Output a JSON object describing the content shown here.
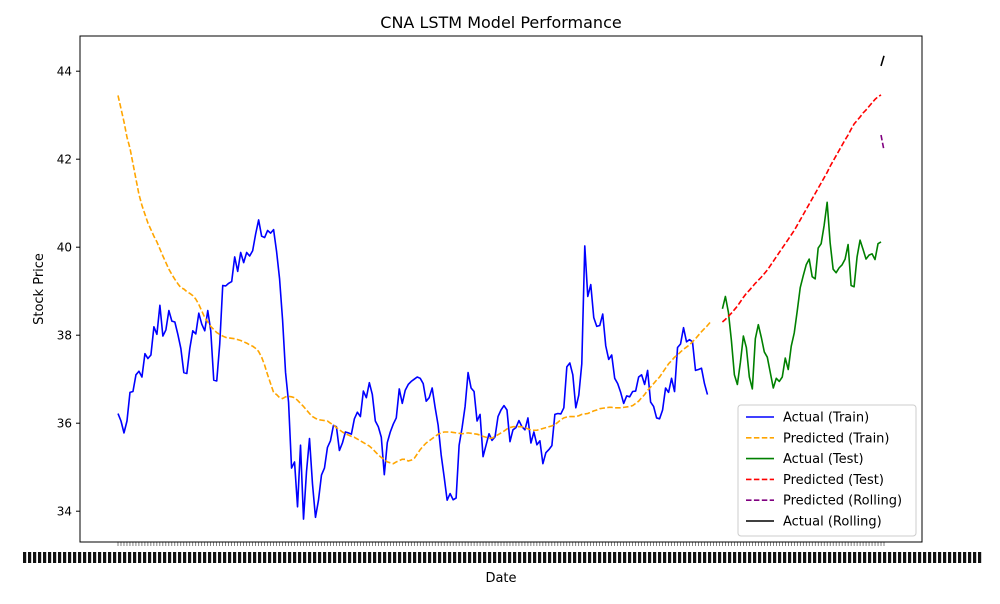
{
  "chart_data": {
    "type": "line",
    "title": "CNA LSTM Model Performance",
    "xlabel": "Date",
    "ylabel": "Stock Price",
    "ylim": [
      33.3,
      44.8
    ],
    "yticks": [
      34,
      36,
      38,
      40,
      42,
      44
    ],
    "ytick_labels": [
      "34",
      "36",
      "38",
      "40",
      "42",
      "44"
    ],
    "x_tick_labels_note": "dense overlapping date labels",
    "legend_position": "lower-right",
    "grid": false,
    "series": [
      {
        "name": "Actual (Train)",
        "color": "#0000ff",
        "style": "solid",
        "start_index": 0,
        "values": [
          36.22,
          36.05,
          35.78,
          36.05,
          36.7,
          36.72,
          37.1,
          37.18,
          37.05,
          37.58,
          37.47,
          37.55,
          38.19,
          38.02,
          38.68,
          37.98,
          38.12,
          38.56,
          38.32,
          38.3,
          38.02,
          37.7,
          37.15,
          37.13,
          37.7,
          38.1,
          38.03,
          38.5,
          38.25,
          38.1,
          38.56,
          38.1,
          36.98,
          36.96,
          37.8,
          39.13,
          39.12,
          39.18,
          39.22,
          39.78,
          39.45,
          39.88,
          39.65,
          39.88,
          39.8,
          39.92,
          40.3,
          40.62,
          40.25,
          40.22,
          40.38,
          40.32,
          40.4,
          39.9,
          39.28,
          38.35,
          37.15,
          36.48,
          34.98,
          35.12,
          34.1,
          35.5,
          33.82,
          34.9,
          35.65,
          34.62,
          33.86,
          34.25,
          34.82,
          34.98,
          35.45,
          35.6,
          35.95,
          35.92,
          35.38,
          35.55,
          35.8,
          35.78,
          35.75,
          36.1,
          36.25,
          36.15,
          36.73,
          36.58,
          36.92,
          36.65,
          36.05,
          35.92,
          35.68,
          34.83,
          35.56,
          35.8,
          35.98,
          36.12,
          36.78,
          36.45,
          36.75,
          36.88,
          36.95,
          37.0,
          37.05,
          37.02,
          36.9,
          36.5,
          36.58,
          36.8,
          36.35,
          35.95,
          35.28,
          34.78,
          34.25,
          34.4,
          34.26,
          34.3,
          35.5,
          35.9,
          36.38,
          37.15,
          36.8,
          36.72,
          36.05,
          36.2,
          35.24,
          35.5,
          35.76,
          35.61,
          35.69,
          36.15,
          36.3,
          36.4,
          36.3,
          35.58,
          35.85,
          35.9,
          36.06,
          35.92,
          35.85,
          36.12,
          35.55,
          35.8,
          35.51,
          35.6,
          35.08,
          35.33,
          35.4,
          35.49,
          36.2,
          36.22,
          36.21,
          36.35,
          37.28,
          37.37,
          37.1,
          36.35,
          36.64,
          37.35,
          40.03,
          38.88,
          39.15,
          38.4,
          38.2,
          38.22,
          38.48,
          37.76,
          37.45,
          37.55,
          37.02,
          36.9,
          36.7,
          36.45,
          36.62,
          36.6,
          36.72,
          36.73,
          37.05,
          37.1,
          36.88,
          37.2,
          36.48,
          36.38,
          36.12,
          36.1,
          36.3,
          36.8,
          36.7,
          37.02,
          36.72,
          37.72,
          37.8,
          38.17,
          37.85,
          37.9,
          37.85,
          37.2,
          37.22,
          37.25,
          36.9,
          36.65
        ]
      },
      {
        "name": "Predicted (Train)",
        "color": "#ffa500",
        "style": "dashed",
        "start_index": 0,
        "values": [
          43.45,
          43.15,
          42.85,
          42.5,
          42.25,
          41.9,
          41.55,
          41.2,
          40.95,
          40.75,
          40.55,
          40.4,
          40.25,
          40.12,
          39.96,
          39.8,
          39.65,
          39.5,
          39.38,
          39.27,
          39.17,
          39.08,
          39.05,
          38.99,
          38.95,
          38.9,
          38.82,
          38.7,
          38.55,
          38.4,
          38.3,
          38.2,
          38.13,
          38.06,
          38.02,
          37.98,
          37.95,
          37.94,
          37.93,
          37.92,
          37.9,
          37.88,
          37.85,
          37.82,
          37.78,
          37.75,
          37.7,
          37.63,
          37.5,
          37.32,
          37.1,
          36.9,
          36.7,
          36.65,
          36.58,
          36.56,
          36.6,
          36.61,
          36.6,
          36.58,
          36.52,
          36.45,
          36.38,
          36.3,
          36.22,
          36.15,
          36.11,
          36.08,
          36.07,
          36.06,
          36.05,
          36.0,
          35.96,
          35.9,
          35.85,
          35.8,
          35.76,
          35.73,
          35.7,
          35.68,
          35.64,
          35.6,
          35.56,
          35.52,
          35.48,
          35.42,
          35.35,
          35.28,
          35.22,
          35.18,
          35.12,
          35.1,
          35.08,
          35.12,
          35.15,
          35.18,
          35.18,
          35.14,
          35.16,
          35.2,
          35.3,
          35.4,
          35.48,
          35.55,
          35.6,
          35.65,
          35.7,
          35.75,
          35.78,
          35.8,
          35.8,
          35.8,
          35.79,
          35.78,
          35.77,
          35.76,
          35.77,
          35.78,
          35.77,
          35.76,
          35.75,
          35.73,
          35.7,
          35.68,
          35.66,
          35.66,
          35.7,
          35.74,
          35.78,
          35.82,
          35.87,
          35.9,
          35.92,
          35.92,
          35.92,
          35.92,
          35.9,
          35.87,
          35.85,
          35.84,
          35.84,
          35.86,
          35.88,
          35.9,
          35.92,
          35.94,
          35.97,
          36.02,
          36.08,
          36.12,
          36.14,
          36.15,
          36.15,
          36.15,
          36.17,
          36.2,
          36.21,
          36.22,
          36.25,
          36.28,
          36.3,
          36.33,
          36.34,
          36.35,
          36.36,
          36.36,
          36.35,
          36.35,
          36.35,
          36.36,
          36.37,
          36.38,
          36.4,
          36.45,
          36.5,
          36.58,
          36.65,
          36.75,
          36.82,
          36.9,
          36.98,
          37.05,
          37.15,
          37.25,
          37.35,
          37.42,
          37.5,
          37.55,
          37.62,
          37.68,
          37.73,
          37.78,
          37.85,
          37.92,
          38.0,
          38.08,
          38.15,
          38.22,
          38.3
        ]
      },
      {
        "name": "Actual (Test)",
        "color": "#008000",
        "style": "solid",
        "start_index": 202,
        "values": [
          38.6,
          38.88,
          38.52,
          37.88,
          37.1,
          36.88,
          37.38,
          37.98,
          37.72,
          37.05,
          36.78,
          37.92,
          38.24,
          37.95,
          37.62,
          37.5,
          37.15,
          36.8,
          37.02,
          36.95,
          37.05,
          37.48,
          37.22,
          37.75,
          38.05,
          38.55,
          39.08,
          39.35,
          39.6,
          39.73,
          39.33,
          39.28,
          39.98,
          40.08,
          40.5,
          41.02,
          40.1,
          39.5,
          39.42,
          39.53,
          39.6,
          39.73,
          40.06,
          39.13,
          39.1,
          39.78,
          40.16,
          39.95,
          39.73,
          39.82,
          39.85,
          39.72,
          40.08,
          40.12
        ]
      },
      {
        "name": "Predicted (Test)",
        "color": "#ff0000",
        "style": "dashed",
        "start_index": 202,
        "values": [
          38.3,
          38.36,
          38.43,
          38.5,
          38.58,
          38.66,
          38.76,
          38.86,
          38.95,
          39.02,
          39.1,
          39.18,
          39.25,
          39.32,
          39.4,
          39.48,
          39.58,
          39.68,
          39.78,
          39.88,
          39.98,
          40.08,
          40.18,
          40.28,
          40.38,
          40.5,
          40.62,
          40.74,
          40.86,
          40.98,
          41.1,
          41.22,
          41.34,
          41.46,
          41.58,
          41.7,
          41.84,
          41.96,
          42.08,
          42.2,
          42.32,
          42.44,
          42.55,
          42.68,
          42.8,
          42.88,
          42.96,
          43.05,
          43.12,
          43.2,
          43.28,
          43.36,
          43.42,
          43.46
        ]
      },
      {
        "name": "Predicted (Rolling)",
        "color": "#800080",
        "style": "dashed",
        "start_index": 255,
        "values": [
          42.55,
          42.2
        ]
      },
      {
        "name": "Actual (Rolling)",
        "color": "#000000",
        "style": "solid",
        "start_index": 255,
        "values": [
          44.12,
          44.35
        ]
      }
    ]
  }
}
